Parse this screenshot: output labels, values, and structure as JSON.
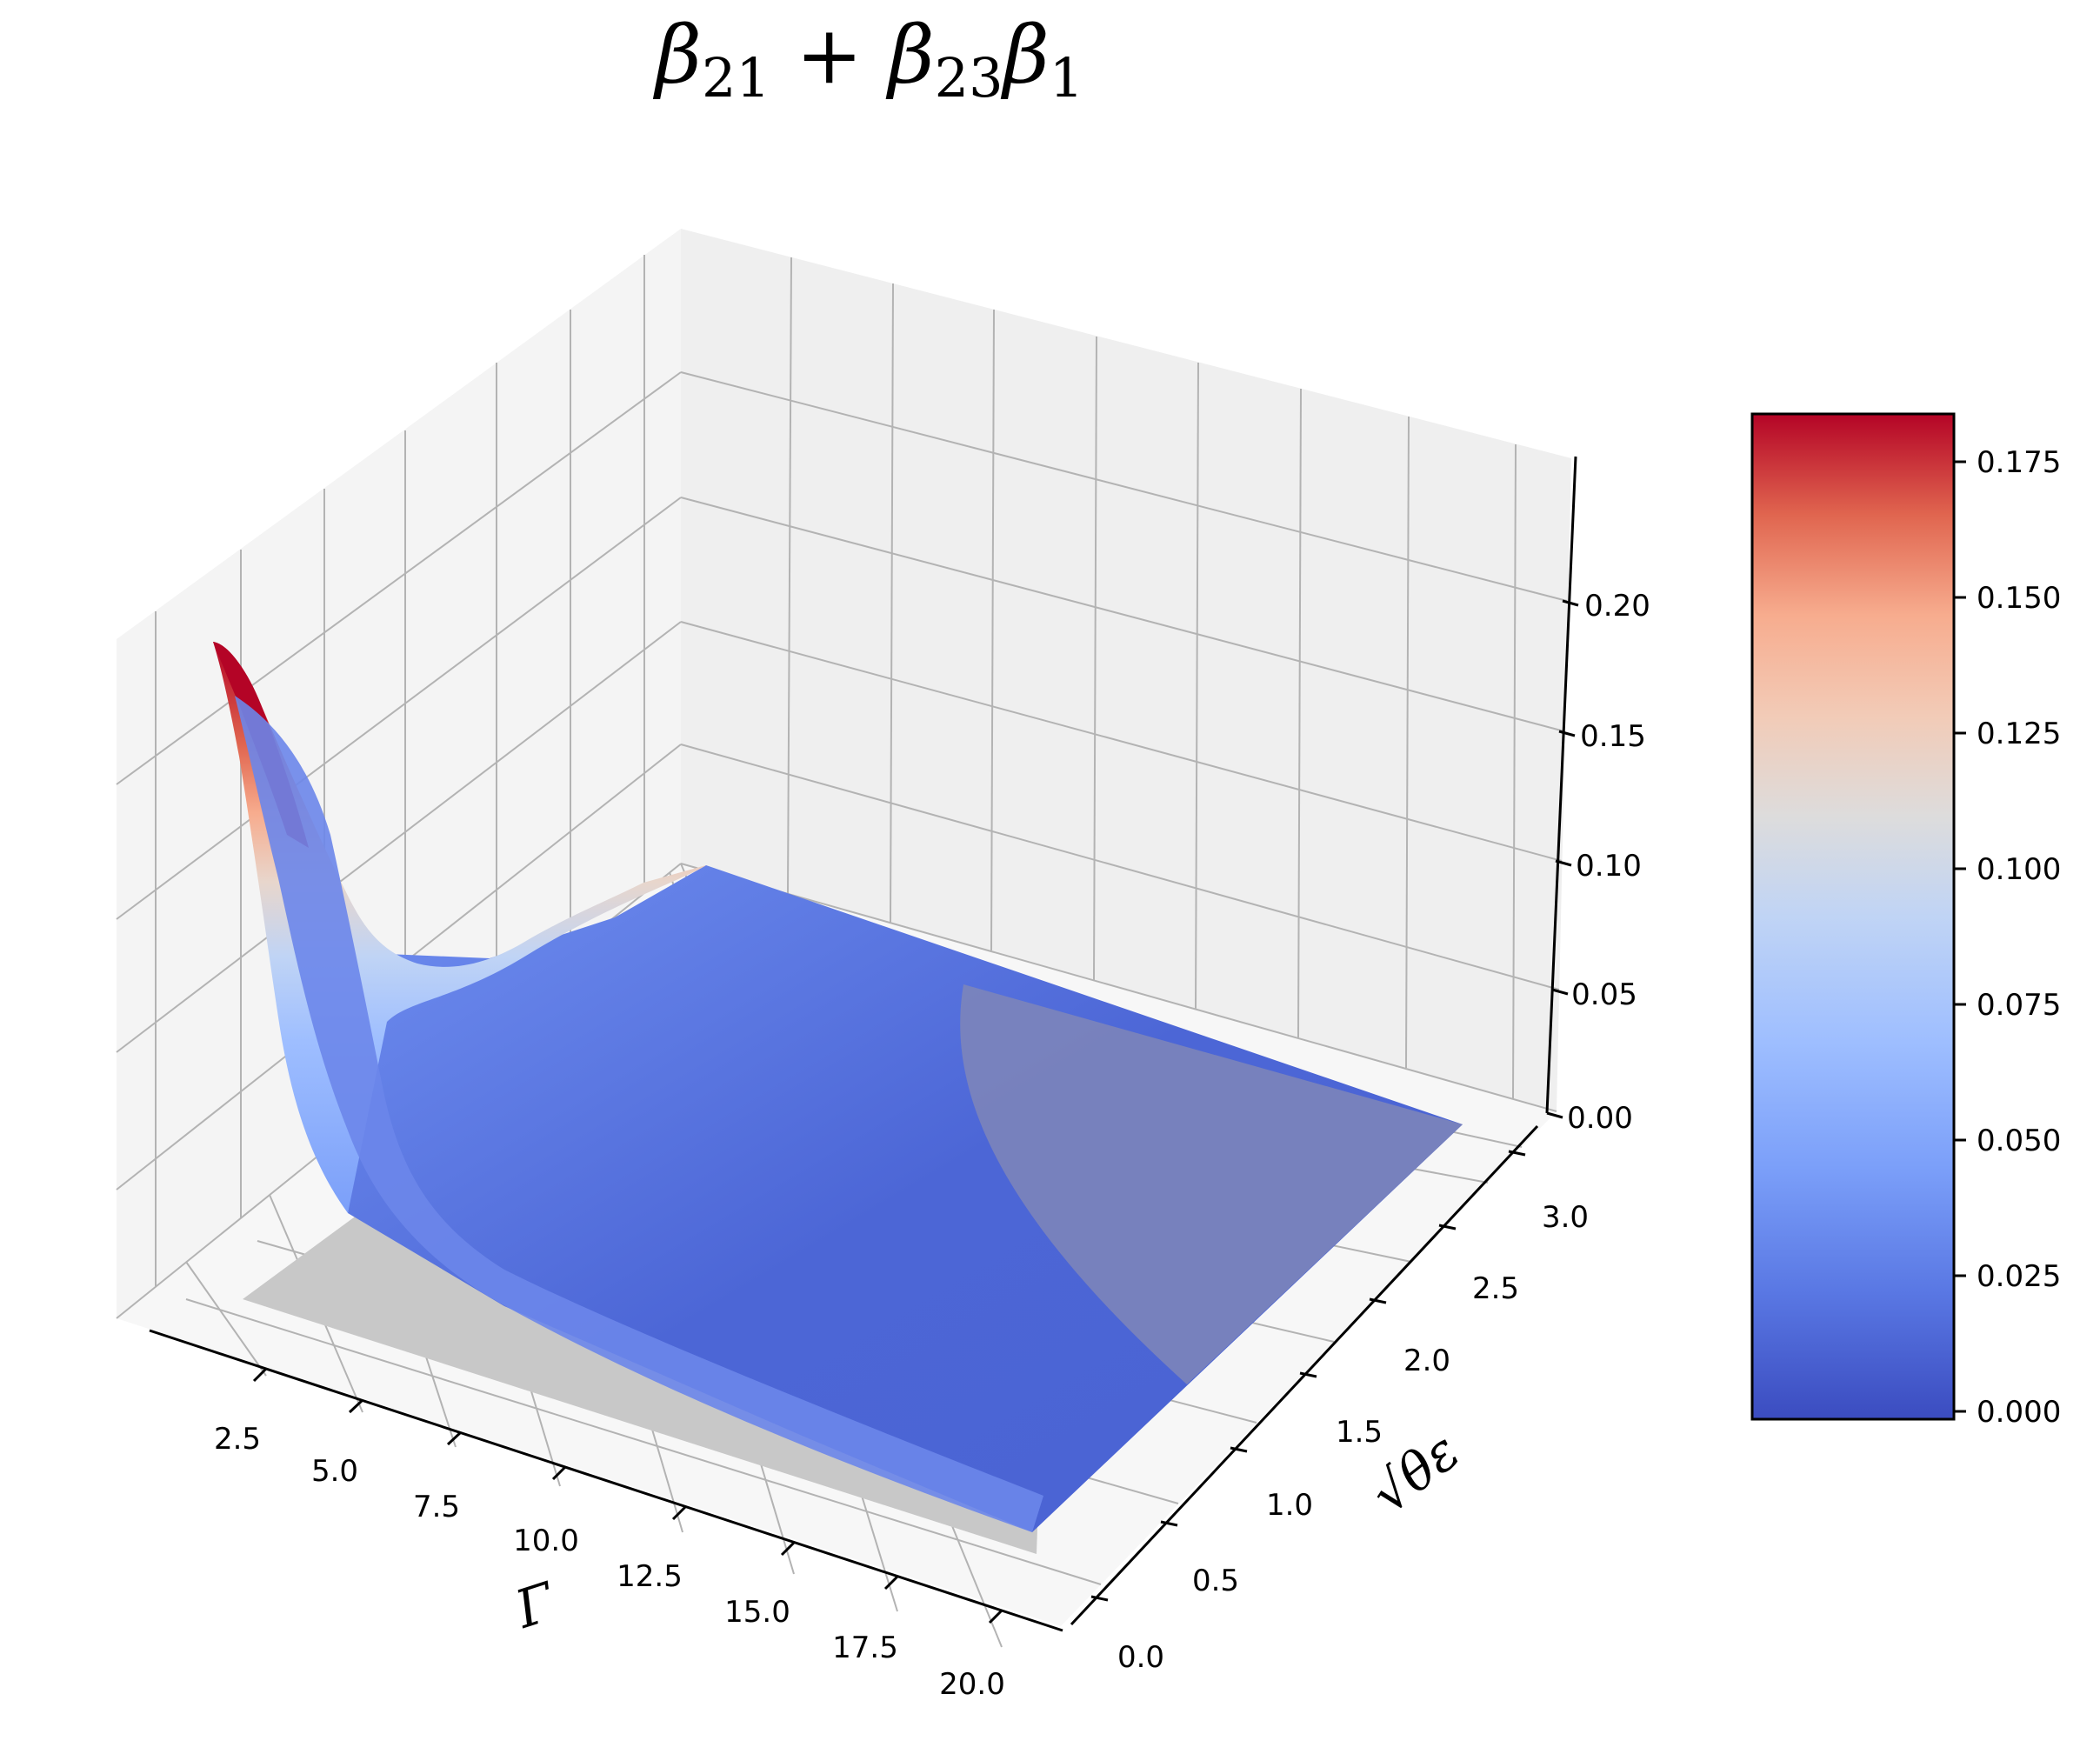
{
  "chart_data": {
    "type": "surface",
    "title": {
      "beta": "β",
      "sub_a": "21",
      "plus": " + ",
      "sub_b": "23",
      "sub_c": "1"
    },
    "xlabel": "Γ",
    "ylabel": "√θε",
    "zlabel": "",
    "x_ticks": [
      "2.5",
      "5.0",
      "7.5",
      "10.0",
      "12.5",
      "15.0",
      "17.5",
      "20.0"
    ],
    "y_ticks": [
      "0.0",
      "0.5",
      "1.0",
      "1.5",
      "2.0",
      "2.5",
      "3.0"
    ],
    "z_ticks": [
      "0.00",
      "0.05",
      "0.10",
      "0.15",
      "0.20"
    ],
    "xlim": [
      1,
      21
    ],
    "ylim": [
      -0.1,
      3.2
    ],
    "zlim": [
      0,
      0.25
    ],
    "colorbar": {
      "colormap": "coolwarm",
      "ticks": [
        "0.000",
        "0.025",
        "0.050",
        "0.075",
        "0.100",
        "0.125",
        "0.150",
        "0.175"
      ],
      "range": [
        0,
        0.183
      ]
    },
    "surface_samples": {
      "x": [
        1,
        2.5,
        5,
        10,
        20
      ],
      "y_front": [
        0.18,
        0.085,
        0.04,
        0.016,
        0.006
      ],
      "y_back": [
        0.08,
        0.045,
        0.025,
        0.012,
        0.004
      ]
    },
    "grid": true
  }
}
